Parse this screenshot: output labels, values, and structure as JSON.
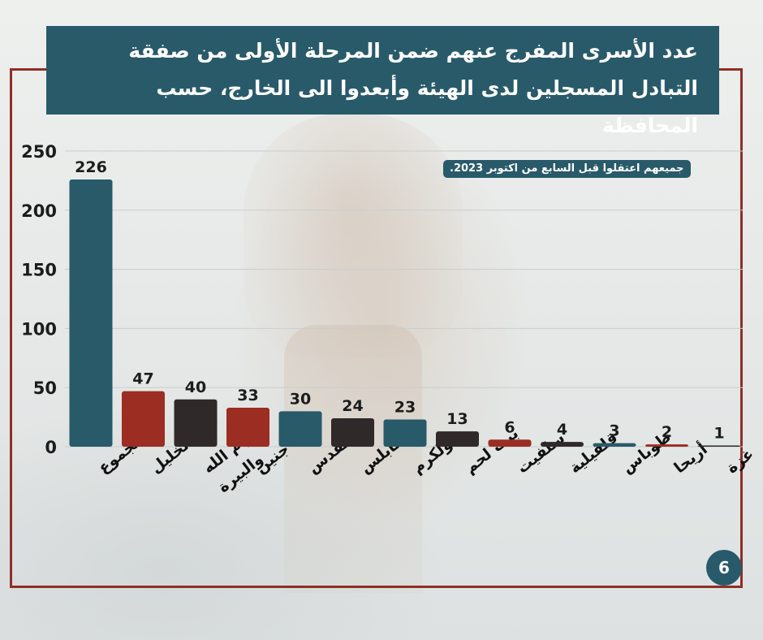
{
  "title": "عدد الأسرى المفرج عنهم ضمن المرحلة الأولى من صفقة التبادل المسجلين لدى الهيئة وأبعدوا الى الخارج، حسب المحافظة",
  "note": "جميعهم اعتقلوا قبل السابع من اكتوبر 2023.",
  "page_number": "6",
  "colors": {
    "teal": "#285a6a",
    "red": "#9b2d23",
    "dark": "#2f2a29",
    "frame": "#8f2f26"
  },
  "chart_data": {
    "type": "bar",
    "title": "عدد الأسرى المفرج عنهم ضمن المرحلة الأولى من صفقة التبادل المسجلين لدى الهيئة وأبعدوا الى الخارج، حسب المحافظة",
    "categories": [
      "المجموع",
      "الخليل",
      "رام الله والبيرة",
      "جنين",
      "القدس",
      "نابلس",
      "طولكرم",
      "بيت لحم",
      "سلفيت",
      "قلقيلية",
      "طوباس",
      "أريحا",
      "غزة"
    ],
    "values": [
      226,
      47,
      40,
      33,
      30,
      24,
      23,
      13,
      6,
      4,
      3,
      2,
      1
    ],
    "bar_colors": [
      "#285a6a",
      "#9b2d23",
      "#2f2a29",
      "#9b2d23",
      "#285a6a",
      "#2f2a29",
      "#285a6a",
      "#2f2a29",
      "#9b2d23",
      "#2f2a29",
      "#285a6a",
      "#9b2d23",
      "#2f2a29"
    ],
    "yticks": [
      0,
      50,
      100,
      150,
      200,
      250
    ],
    "ylim": [
      0,
      250
    ],
    "xlabel": "",
    "ylabel": "",
    "grid": true,
    "data_labels": true
  }
}
